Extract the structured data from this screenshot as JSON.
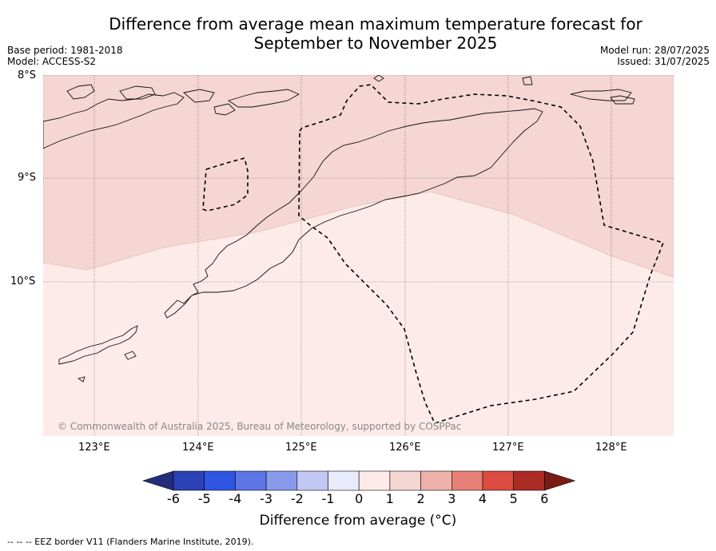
{
  "title_line1": "Difference from average mean maximum temperature forecast for",
  "title_line2": "September to November 2025",
  "meta_left": [
    "Base period: 1981-2018",
    "Model: ACCESS-S2"
  ],
  "meta_right": [
    "Model run: 28/07/2025",
    "Issued: 31/07/2025"
  ],
  "lat_ticks": [
    "8°S",
    "9°S",
    "10°S"
  ],
  "lon_ticks": [
    "123°E",
    "124°E",
    "125°E",
    "126°E",
    "127°E",
    "128°E"
  ],
  "copyright": "© Commonwealth of Australia 2025, Bureau of Meteorology, supported by COSPPac",
  "colorbar": {
    "ticks": [
      "-6",
      "-5",
      "-4",
      "-3",
      "-2",
      "-1",
      "0",
      "1",
      "2",
      "3",
      "4",
      "5",
      "6"
    ],
    "colors": [
      "#232d7c",
      "#2b41b6",
      "#2f55e2",
      "#5c76e5",
      "#8899ea",
      "#c1c8f3",
      "#e8ebfb",
      "#fcebe9",
      "#f5d6d3",
      "#eeb0aa",
      "#e68077",
      "#db4b40",
      "#ab2c24",
      "#7a1b17"
    ],
    "label": "Difference from average (°C)"
  },
  "regions": {
    "north_band": {
      "range": "1 to 2",
      "color": "#f5d6d3"
    },
    "south_band": {
      "range": "0 to 1",
      "color": "#fcebe9"
    }
  },
  "footer": "--  --  -- EEZ border V11 (Flanders Marine Institute, 2019)."
}
